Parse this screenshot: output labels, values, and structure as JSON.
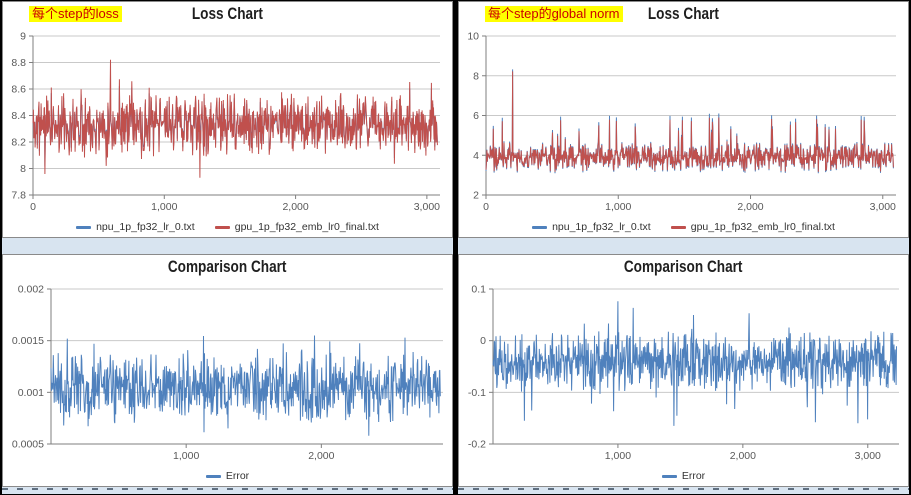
{
  "chart_data": [
    {
      "type": "line",
      "title": "Loss Chart",
      "annotation": "每个step的loss",
      "annotation_highlight": "#FFFF00",
      "annotation_text_color": "#CC0000",
      "x_ticks": [
        {
          "label": "0",
          "value": 0
        },
        {
          "label": "1,000",
          "value": 1000
        },
        {
          "label": "2,000",
          "value": 2000
        },
        {
          "label": "3,000",
          "value": 3000
        }
      ],
      "y_ticks": [
        {
          "label": "9",
          "value": 9
        },
        {
          "label": "8.8",
          "value": 8.8
        },
        {
          "label": "8.6",
          "value": 8.6
        },
        {
          "label": "8.4",
          "value": 8.4
        },
        {
          "label": "8.2",
          "value": 8.2
        },
        {
          "label": "8",
          "value": 8
        },
        {
          "label": "7.8",
          "value": 7.8
        }
      ],
      "x_range": [
        0,
        3100
      ],
      "y_range": [
        7.8,
        9
      ],
      "data_x_max": 3080,
      "grid": true,
      "legend_position": "bottom",
      "series": [
        {
          "name": "npu_1p_fp32_lr_0.txt",
          "color": "#4F81BD",
          "mean": 8.33,
          "band": 0.26,
          "spike_prob": 0.012,
          "spike_amp": 0.2,
          "spike_dir": "both",
          "overlay_scale": 0.85,
          "spikes": []
        },
        {
          "name": "gpu_1p_fp32_emb_lr0_final.txt",
          "color": "#C0504D",
          "mean": 8.33,
          "band": 0.26,
          "spike_prob": 0.012,
          "spike_amp": 0.2,
          "spike_dir": "both",
          "overlay_scale": 1,
          "spikes": [
            {
              "x": 590,
              "y": 8.82
            },
            {
              "x": 1270,
              "y": 7.93
            }
          ]
        }
      ]
    },
    {
      "type": "line",
      "title": "Loss Chart",
      "annotation": "每个step的global norm",
      "annotation_highlight": "#FFFF00",
      "annotation_text_color": "#CC0000",
      "x_ticks": [
        {
          "label": "0",
          "value": 0
        },
        {
          "label": "1,000",
          "value": 1000
        },
        {
          "label": "2,000",
          "value": 2000
        },
        {
          "label": "3,000",
          "value": 3000
        }
      ],
      "y_ticks": [
        {
          "label": "10",
          "value": 10
        },
        {
          "label": "8",
          "value": 8
        },
        {
          "label": "6",
          "value": 6
        },
        {
          "label": "4",
          "value": 4
        },
        {
          "label": "2",
          "value": 2
        }
      ],
      "x_range": [
        0,
        3100
      ],
      "y_range": [
        2,
        10
      ],
      "data_x_max": 3080,
      "grid": true,
      "legend_position": "bottom",
      "series": [
        {
          "name": "npu_1p_fp32_lr_0.txt",
          "color": "#4F81BD",
          "mean": 3.9,
          "band": 0.75,
          "spike_prob": 0.03,
          "spike_amp": 1.5,
          "spike_dir": "up",
          "overlay_scale": 1.1,
          "spikes": [
            {
              "x": 200,
              "y": 8.32
            }
          ]
        },
        {
          "name": "gpu_1p_fp32_emb_lr0_final.txt",
          "color": "#C0504D",
          "mean": 3.9,
          "band": 0.75,
          "spike_prob": 0.03,
          "spike_amp": 1.5,
          "spike_dir": "up",
          "overlay_scale": 1,
          "spikes": [
            {
              "x": 200,
              "y": 8.22
            }
          ]
        }
      ]
    },
    {
      "type": "line",
      "title": "Comparison Chart",
      "annotation": "",
      "x_ticks": [
        {
          "label": "1,000",
          "value": 1000
        },
        {
          "label": "2,000",
          "value": 2000
        }
      ],
      "y_ticks": [
        {
          "label": "0.002",
          "value": 0.002
        },
        {
          "label": "0.0015",
          "value": 0.0015
        },
        {
          "label": "0.001",
          "value": 0.001
        },
        {
          "label": "0.0005",
          "value": 0.0005
        }
      ],
      "x_range": [
        0,
        2900
      ],
      "y_range": [
        0.0005,
        0.002
      ],
      "data_x_max": 2880,
      "grid": true,
      "legend_position": "bottom",
      "series": [
        {
          "name": "Error",
          "color": "#4F81BD",
          "mean": 0.00104,
          "band": 0.00038,
          "spike_prob": 0.012,
          "spike_amp": 0.00022,
          "spike_dir": "both",
          "overlay_scale": 1,
          "spikes": [
            {
              "x": 120,
              "y": 0.00152
            },
            {
              "x": 1950,
              "y": 0.00155
            },
            {
              "x": 2350,
              "y": 0.00058
            },
            {
              "x": 2620,
              "y": 0.00153
            }
          ]
        }
      ]
    },
    {
      "type": "line",
      "title": "Comparison Chart",
      "annotation": "",
      "x_ticks": [
        {
          "label": "1,000",
          "value": 1000
        },
        {
          "label": "2,000",
          "value": 2000
        },
        {
          "label": "3,000",
          "value": 3000
        }
      ],
      "y_ticks": [
        {
          "label": "0.1",
          "value": 0.1
        },
        {
          "label": "0",
          "value": 0
        },
        {
          "label": "-0.1",
          "value": -0.1
        },
        {
          "label": "-0.2",
          "value": -0.2
        }
      ],
      "x_range": [
        0,
        3250
      ],
      "y_range": [
        -0.2,
        0.1
      ],
      "data_x_max": 3230,
      "grid": true,
      "legend_position": "bottom",
      "series": [
        {
          "name": "Error",
          "color": "#4F81BD",
          "mean": -0.04,
          "band": 0.065,
          "spike_prob": 0.02,
          "spike_amp": 0.07,
          "spike_dir": "down_biased",
          "overlay_scale": 1,
          "spikes": [
            {
              "x": 250,
              "y": -0.155
            },
            {
              "x": 1450,
              "y": -0.165
            },
            {
              "x": 2050,
              "y": 0.053
            },
            {
              "x": 2580,
              "y": -0.158
            },
            {
              "x": 2920,
              "y": -0.16
            }
          ]
        }
      ]
    }
  ],
  "colors": {
    "series_red": "#C0504D",
    "series_blue": "#4F81BD",
    "gridline": "#C9C9C9",
    "axis": "#7F7F7F",
    "panel_border": "#8A8A8A",
    "strip_blue": "#D8E4F0",
    "background": "#000000"
  }
}
